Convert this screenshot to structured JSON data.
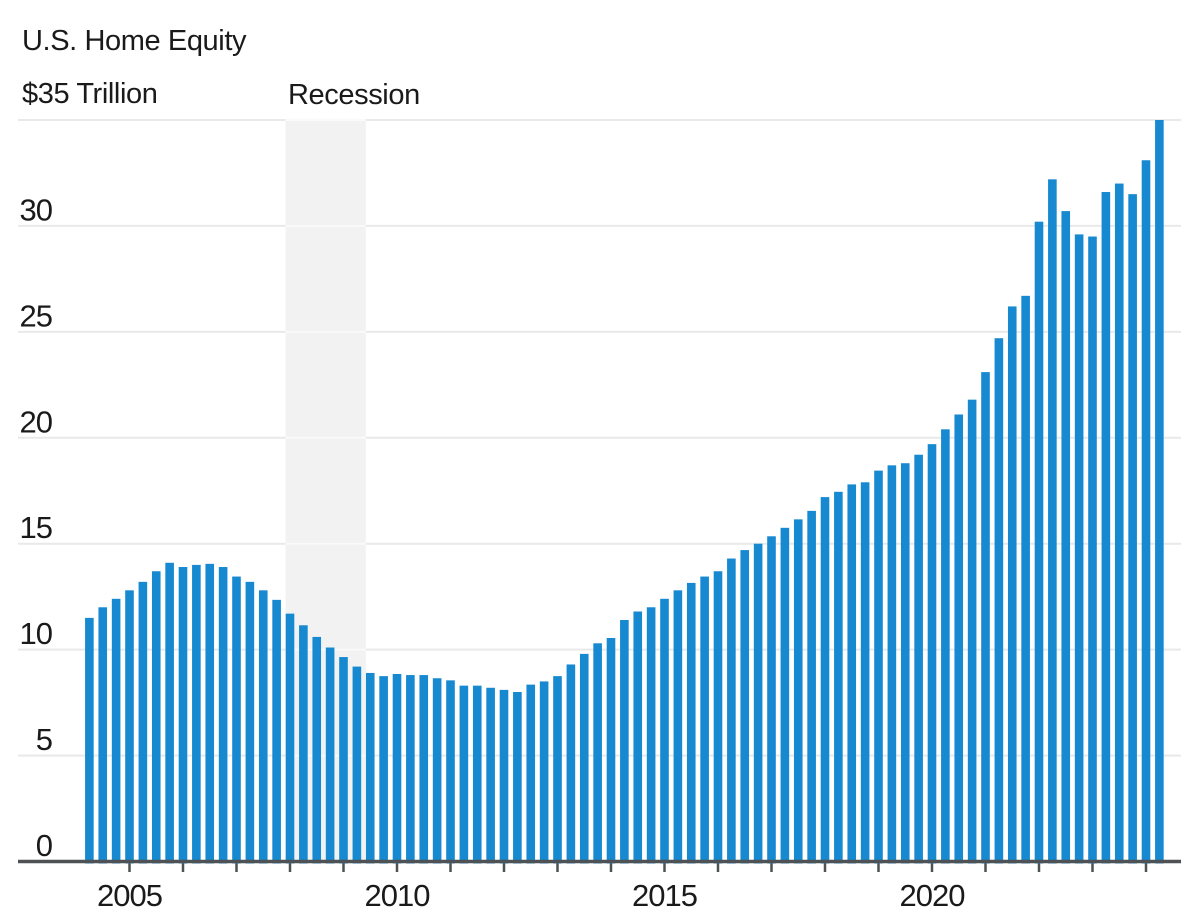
{
  "chart_data": {
    "type": "bar",
    "title": "U.S. Home Equity",
    "top_axis_label": "$35 Trillion",
    "recession_label": "Recession",
    "unit": "trillions of U.S. dollars",
    "frequency": "quarterly",
    "x_start": "2004-Q2",
    "x_end": "2024-Q2",
    "ylim": [
      0,
      35
    ],
    "grid": true,
    "yticks": [
      {
        "value": 0,
        "label": "0"
      },
      {
        "value": 5,
        "label": "5"
      },
      {
        "value": 10,
        "label": "10"
      },
      {
        "value": 15,
        "label": "15"
      },
      {
        "value": 20,
        "label": "20"
      },
      {
        "value": 25,
        "label": "25"
      },
      {
        "value": 30,
        "label": "30"
      }
    ],
    "top_gridline_value": 35,
    "xtick_labels": [
      2005,
      2010,
      2015,
      2020
    ],
    "year_ticks": {
      "from": 2005,
      "to": 2024
    },
    "recession_span": {
      "from": "2007-12",
      "to": "2009-06"
    },
    "values": [
      11.5,
      12.0,
      12.4,
      12.8,
      13.2,
      13.7,
      14.1,
      13.9,
      14.0,
      14.05,
      13.9,
      13.45,
      13.2,
      12.8,
      12.35,
      11.7,
      11.15,
      10.6,
      10.1,
      9.65,
      9.2,
      8.9,
      8.75,
      8.85,
      8.8,
      8.8,
      8.65,
      8.55,
      8.3,
      8.3,
      8.2,
      8.1,
      8.0,
      8.35,
      8.5,
      8.75,
      9.3,
      9.8,
      10.3,
      10.55,
      11.4,
      11.8,
      12.0,
      12.4,
      12.8,
      13.15,
      13.45,
      13.7,
      14.3,
      14.7,
      15.0,
      15.35,
      15.75,
      16.15,
      16.55,
      17.2,
      17.45,
      17.8,
      17.9,
      18.45,
      18.7,
      18.8,
      19.2,
      19.7,
      20.4,
      21.1,
      21.8,
      23.1,
      24.7,
      26.2,
      26.7,
      30.2,
      32.2,
      30.7,
      29.6,
      29.5,
      31.6,
      32.0,
      31.5,
      33.1,
      35.0
    ],
    "colors": {
      "bar": "#1689d1",
      "recession_band": "#f2f2f2",
      "gridline": "#e9e9e9",
      "gridline_on_band": "#fafafa",
      "axis": "#4f5254",
      "text": "#1a1a1a",
      "background": "#ffffff"
    }
  }
}
